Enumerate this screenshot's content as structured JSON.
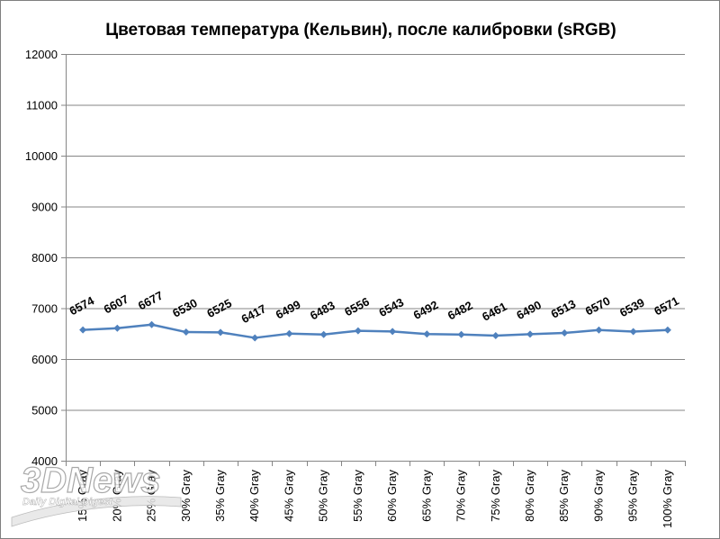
{
  "chart_data": {
    "type": "line",
    "title": "Цветовая температура (Кельвин), после калибровки (sRGB)",
    "xlabel": "",
    "ylabel": "",
    "ylim": [
      4000,
      12000
    ],
    "yticks": [
      4000,
      5000,
      6000,
      7000,
      8000,
      9000,
      10000,
      11000,
      12000
    ],
    "grid": "horizontal",
    "legend": "none",
    "colors": {
      "line": "#4f81bd",
      "grid": "#868686",
      "axis": "#868686"
    },
    "categories": [
      "15% Gray",
      "20% Gray",
      "25% Gray",
      "30% Gray",
      "35% Gray",
      "40% Gray",
      "45% Gray",
      "50% Gray",
      "55% Gray",
      "60% Gray",
      "65% Gray",
      "70% Gray",
      "75% Gray",
      "80% Gray",
      "85% Gray",
      "90% Gray",
      "95% Gray",
      "100% Gray"
    ],
    "series": [
      {
        "values": [
          6574,
          6607,
          6677,
          6530,
          6525,
          6417,
          6499,
          6483,
          6556,
          6543,
          6492,
          6482,
          6461,
          6490,
          6513,
          6570,
          6539,
          6571
        ]
      }
    ]
  },
  "watermark": {
    "logo_text": "3DNews",
    "tagline": "Daily Digital Digest"
  }
}
